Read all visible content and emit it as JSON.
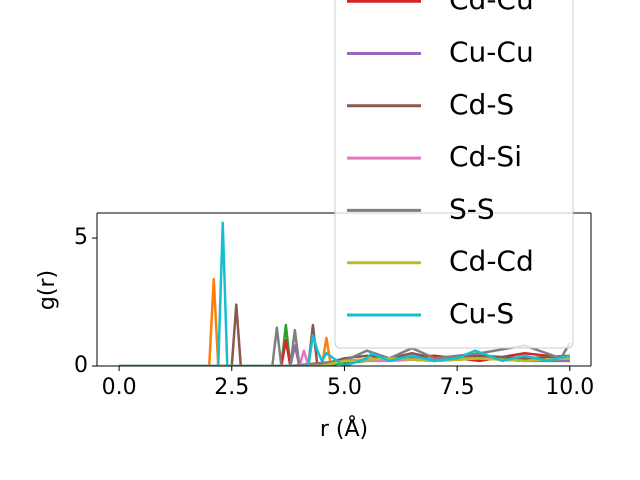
{
  "chart_data": {
    "type": "line",
    "xlabel": "r (Å)",
    "ylabel": "g(r)",
    "xlim": [
      -0.49,
      10.47
    ],
    "ylim": [
      0,
      5.98
    ],
    "xticks": [
      {
        "value": 0,
        "label": "0.0"
      },
      {
        "value": 2.5,
        "label": "2.5"
      },
      {
        "value": 5,
        "label": "5.0"
      },
      {
        "value": 7.5,
        "label": "7.5"
      },
      {
        "value": 10,
        "label": "10.0"
      }
    ],
    "yticks": [
      0,
      5
    ],
    "series": [
      {
        "color": "#ff7f0e",
        "x": [
          0,
          2.0,
          2.1,
          2.2,
          4.5,
          4.6,
          4.7,
          5,
          6,
          7,
          8,
          9,
          10
        ],
        "values": [
          0,
          0,
          3.4,
          0,
          0,
          1.1,
          0,
          0.2,
          0.3,
          0.2,
          0.3,
          0.2,
          0.3
        ]
      },
      {
        "color": "#2ca02c",
        "x": [
          0,
          3.6,
          3.7,
          3.8,
          5,
          6,
          7,
          8,
          9,
          10
        ],
        "values": [
          0,
          0,
          1.6,
          0,
          0.1,
          0.3,
          0.2,
          0.3,
          0.2,
          0.2
        ]
      },
      {
        "name": "Cd-Cu",
        "color": "#d62728",
        "x": [
          0,
          3.6,
          3.7,
          3.8,
          5,
          6,
          7,
          8,
          9,
          10
        ],
        "values": [
          0,
          0,
          1.0,
          0,
          0.2,
          0.3,
          0.4,
          0.2,
          0.5,
          0.3
        ]
      },
      {
        "name": "Cu-Cu",
        "color": "#9467bd",
        "x": [
          0,
          3.8,
          3.9,
          4.0,
          5,
          6.5,
          8,
          10
        ],
        "values": [
          0,
          0,
          0.8,
          0,
          0.2,
          0.3,
          0.3,
          0.2
        ]
      },
      {
        "name": "Cd-S",
        "color": "#8c564b",
        "x": [
          0,
          2.5,
          2.6,
          2.7,
          4.2,
          4.3,
          4.4,
          5,
          5.5,
          6,
          6.5,
          7,
          8,
          9,
          10
        ],
        "values": [
          0,
          0,
          2.4,
          0,
          0,
          1.6,
          0,
          0.3,
          0.4,
          0.3,
          0.5,
          0.3,
          0.4,
          0.3,
          0.4
        ]
      },
      {
        "name": "Cd-Si",
        "color": "#e377c2",
        "x": [
          0,
          4.0,
          4.1,
          4.2,
          5,
          6,
          7,
          8,
          9,
          10
        ],
        "values": [
          0,
          0,
          0.6,
          0,
          0.2,
          0.2,
          0.3,
          0.3,
          0.2,
          0.3
        ]
      },
      {
        "name": "S-S",
        "color": "#7f7f7f",
        "x": [
          0,
          3.4,
          3.5,
          3.6,
          3.8,
          3.9,
          4.0,
          5,
          5.5,
          6,
          6.5,
          7,
          8,
          9,
          9.8,
          10
        ],
        "values": [
          0,
          0,
          1.5,
          0,
          0,
          1.4,
          0,
          0.2,
          0.6,
          0.3,
          0.7,
          0.3,
          0.5,
          0.8,
          0.3,
          0.9
        ]
      },
      {
        "name": "Cd-Cd",
        "color": "#bcbd22",
        "x": [
          0,
          4.5,
          5,
          6,
          7,
          8,
          9,
          10
        ],
        "values": [
          0,
          0,
          0.2,
          0.3,
          0.2,
          0.3,
          0.2,
          0.3
        ]
      },
      {
        "name": "Cu-S",
        "color": "#17becf",
        "x": [
          0,
          2.2,
          2.3,
          2.4,
          4.2,
          4.3,
          4.4,
          4.5,
          4.6,
          5,
          5.5,
          5.6,
          6,
          6.5,
          7,
          7.5,
          7.9,
          8.5,
          9,
          9.5,
          10
        ],
        "values": [
          0,
          0,
          5.6,
          0,
          0,
          1.2,
          0.6,
          0.2,
          0.5,
          0,
          0.3,
          0.5,
          0.2,
          0.4,
          0.2,
          0.3,
          0.6,
          0.2,
          0.4,
          0.2,
          0.4
        ]
      }
    ]
  }
}
